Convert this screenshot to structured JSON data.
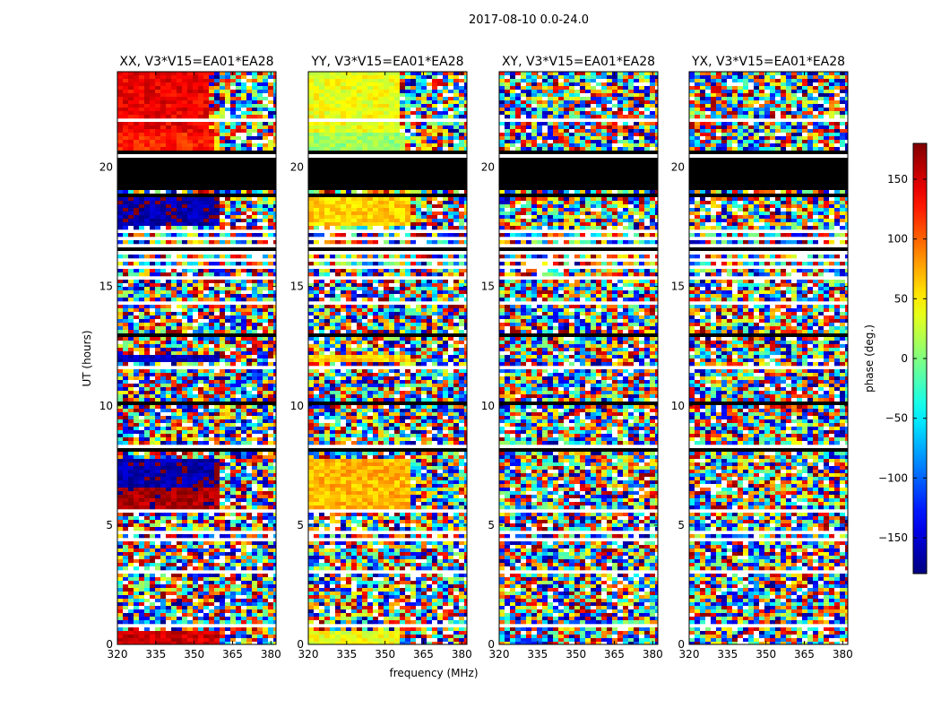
{
  "chart_data": {
    "type": "heatmap",
    "title": "2017-08-10 0.0-24.0",
    "xlabel": "frequency (MHz)",
    "ylabel": "UT (hours)",
    "xlim": [
      320,
      382
    ],
    "ylim": [
      0,
      24
    ],
    "xticks": [
      320,
      335,
      350,
      365,
      380
    ],
    "yticks": [
      0,
      5,
      10,
      15,
      20
    ],
    "colormap": "jet",
    "colorbar": {
      "label": "phase (deg.)",
      "range": [
        -180,
        180
      ],
      "ticks": [
        -150,
        -100,
        -50,
        0,
        50,
        100,
        150
      ],
      "colors": [
        "#00007f",
        "#0000ff",
        "#00ffff",
        "#7fff7f",
        "#ffff00",
        "#ff0000",
        "#7f0000"
      ]
    },
    "panels": [
      {
        "title": "XX, V3*V15=EA01*EA28",
        "coherent_segments": [
          {
            "ut": [
              0.0,
              0.6
            ],
            "freq": [
              320,
              360
            ],
            "phase": 150
          },
          {
            "ut": [
              5.7,
              6.5
            ],
            "freq": [
              320,
              359
            ],
            "phase": 165
          },
          {
            "ut": [
              6.5,
              7.8
            ],
            "freq": [
              320,
              359
            ],
            "phase": -165
          },
          {
            "ut": [
              11.9,
              12.1
            ],
            "freq": [
              320,
              360
            ],
            "phase": -160
          },
          {
            "ut": [
              17.5,
              18.9
            ],
            "freq": [
              320,
              360
            ],
            "phase": -165
          },
          {
            "ut": [
              20.7,
              21.4
            ],
            "freq": [
              320,
              357
            ],
            "phase": 125
          },
          {
            "ut": [
              21.4,
              24.0
            ],
            "freq": [
              320,
              356
            ],
            "phase": 140
          }
        ]
      },
      {
        "title": "YY, V3*V15=EA01*EA28",
        "coherent_segments": [
          {
            "ut": [
              0.0,
              0.6
            ],
            "freq": [
              320,
              355
            ],
            "phase": 40
          },
          {
            "ut": [
              5.7,
              7.8
            ],
            "freq": [
              320,
              359
            ],
            "phase": 70
          },
          {
            "ut": [
              11.9,
              12.1
            ],
            "freq": [
              320,
              360
            ],
            "phase": 60
          },
          {
            "ut": [
              17.5,
              18.9
            ],
            "freq": [
              320,
              360
            ],
            "phase": 60
          },
          {
            "ut": [
              20.7,
              21.4
            ],
            "freq": [
              320,
              357
            ],
            "phase": 10
          },
          {
            "ut": [
              21.4,
              24.0
            ],
            "freq": [
              320,
              356
            ],
            "phase": 40
          }
        ]
      },
      {
        "title": "XY, V3*V15=EA01*EA28",
        "coherent_segments": []
      },
      {
        "title": "YX, V3*V15=EA01*EA28",
        "coherent_segments": []
      }
    ],
    "blank_rows_ut": [
      [
        0.75,
        0.82
      ],
      [
        1.25,
        1.3
      ],
      [
        1.55,
        1.62
      ],
      [
        2.75,
        2.8
      ],
      [
        3.0,
        3.05
      ],
      [
        4.1,
        4.15
      ],
      [
        4.35,
        4.42
      ],
      [
        4.65,
        4.72
      ],
      [
        5.55,
        5.6
      ],
      [
        6.05,
        6.1
      ],
      [
        7.85,
        7.95
      ],
      [
        8.25,
        8.35
      ],
      [
        8.7,
        8.75
      ],
      [
        9.45,
        9.5
      ],
      [
        9.9,
        9.95
      ],
      [
        10.45,
        10.5
      ],
      [
        11.6,
        11.7
      ],
      [
        12.25,
        12.35
      ],
      [
        12.75,
        12.8
      ],
      [
        13.3,
        13.4
      ],
      [
        13.75,
        13.8
      ],
      [
        14.3,
        14.35
      ],
      [
        14.7,
        14.75
      ],
      [
        15.35,
        15.45
      ],
      [
        15.45,
        15.5
      ],
      [
        15.8,
        15.9
      ],
      [
        16.0,
        16.25
      ],
      [
        16.35,
        16.5
      ],
      [
        16.65,
        16.8
      ],
      [
        16.95,
        17.15
      ],
      [
        17.25,
        17.35
      ],
      [
        19.0,
        19.05
      ],
      [
        20.45,
        20.55
      ],
      [
        21.25,
        21.35
      ],
      [
        21.95,
        22.05
      ],
      [
        22.6,
        22.7
      ],
      [
        22.9,
        22.95
      ],
      [
        23.35,
        23.4
      ]
    ],
    "black_rows_ut": [
      [
        1.4,
        1.45
      ],
      [
        8.15,
        8.22
      ],
      [
        10.0,
        10.2
      ],
      [
        12.95,
        13.0
      ],
      [
        13.45,
        13.5
      ],
      [
        16.3,
        16.35
      ],
      [
        16.55,
        16.6
      ],
      [
        17.2,
        17.25
      ],
      [
        17.85,
        17.9
      ],
      [
        18.3,
        18.35
      ],
      [
        18.8,
        18.85
      ],
      [
        19.1,
        19.15
      ],
      [
        19.25,
        19.3
      ],
      [
        19.4,
        19.45
      ],
      [
        19.55,
        19.6
      ],
      [
        19.7,
        19.75
      ],
      [
        19.85,
        19.9
      ],
      [
        20.0,
        20.05
      ],
      [
        20.15,
        20.2
      ],
      [
        20.3,
        20.35
      ],
      [
        20.6,
        20.65
      ]
    ]
  }
}
